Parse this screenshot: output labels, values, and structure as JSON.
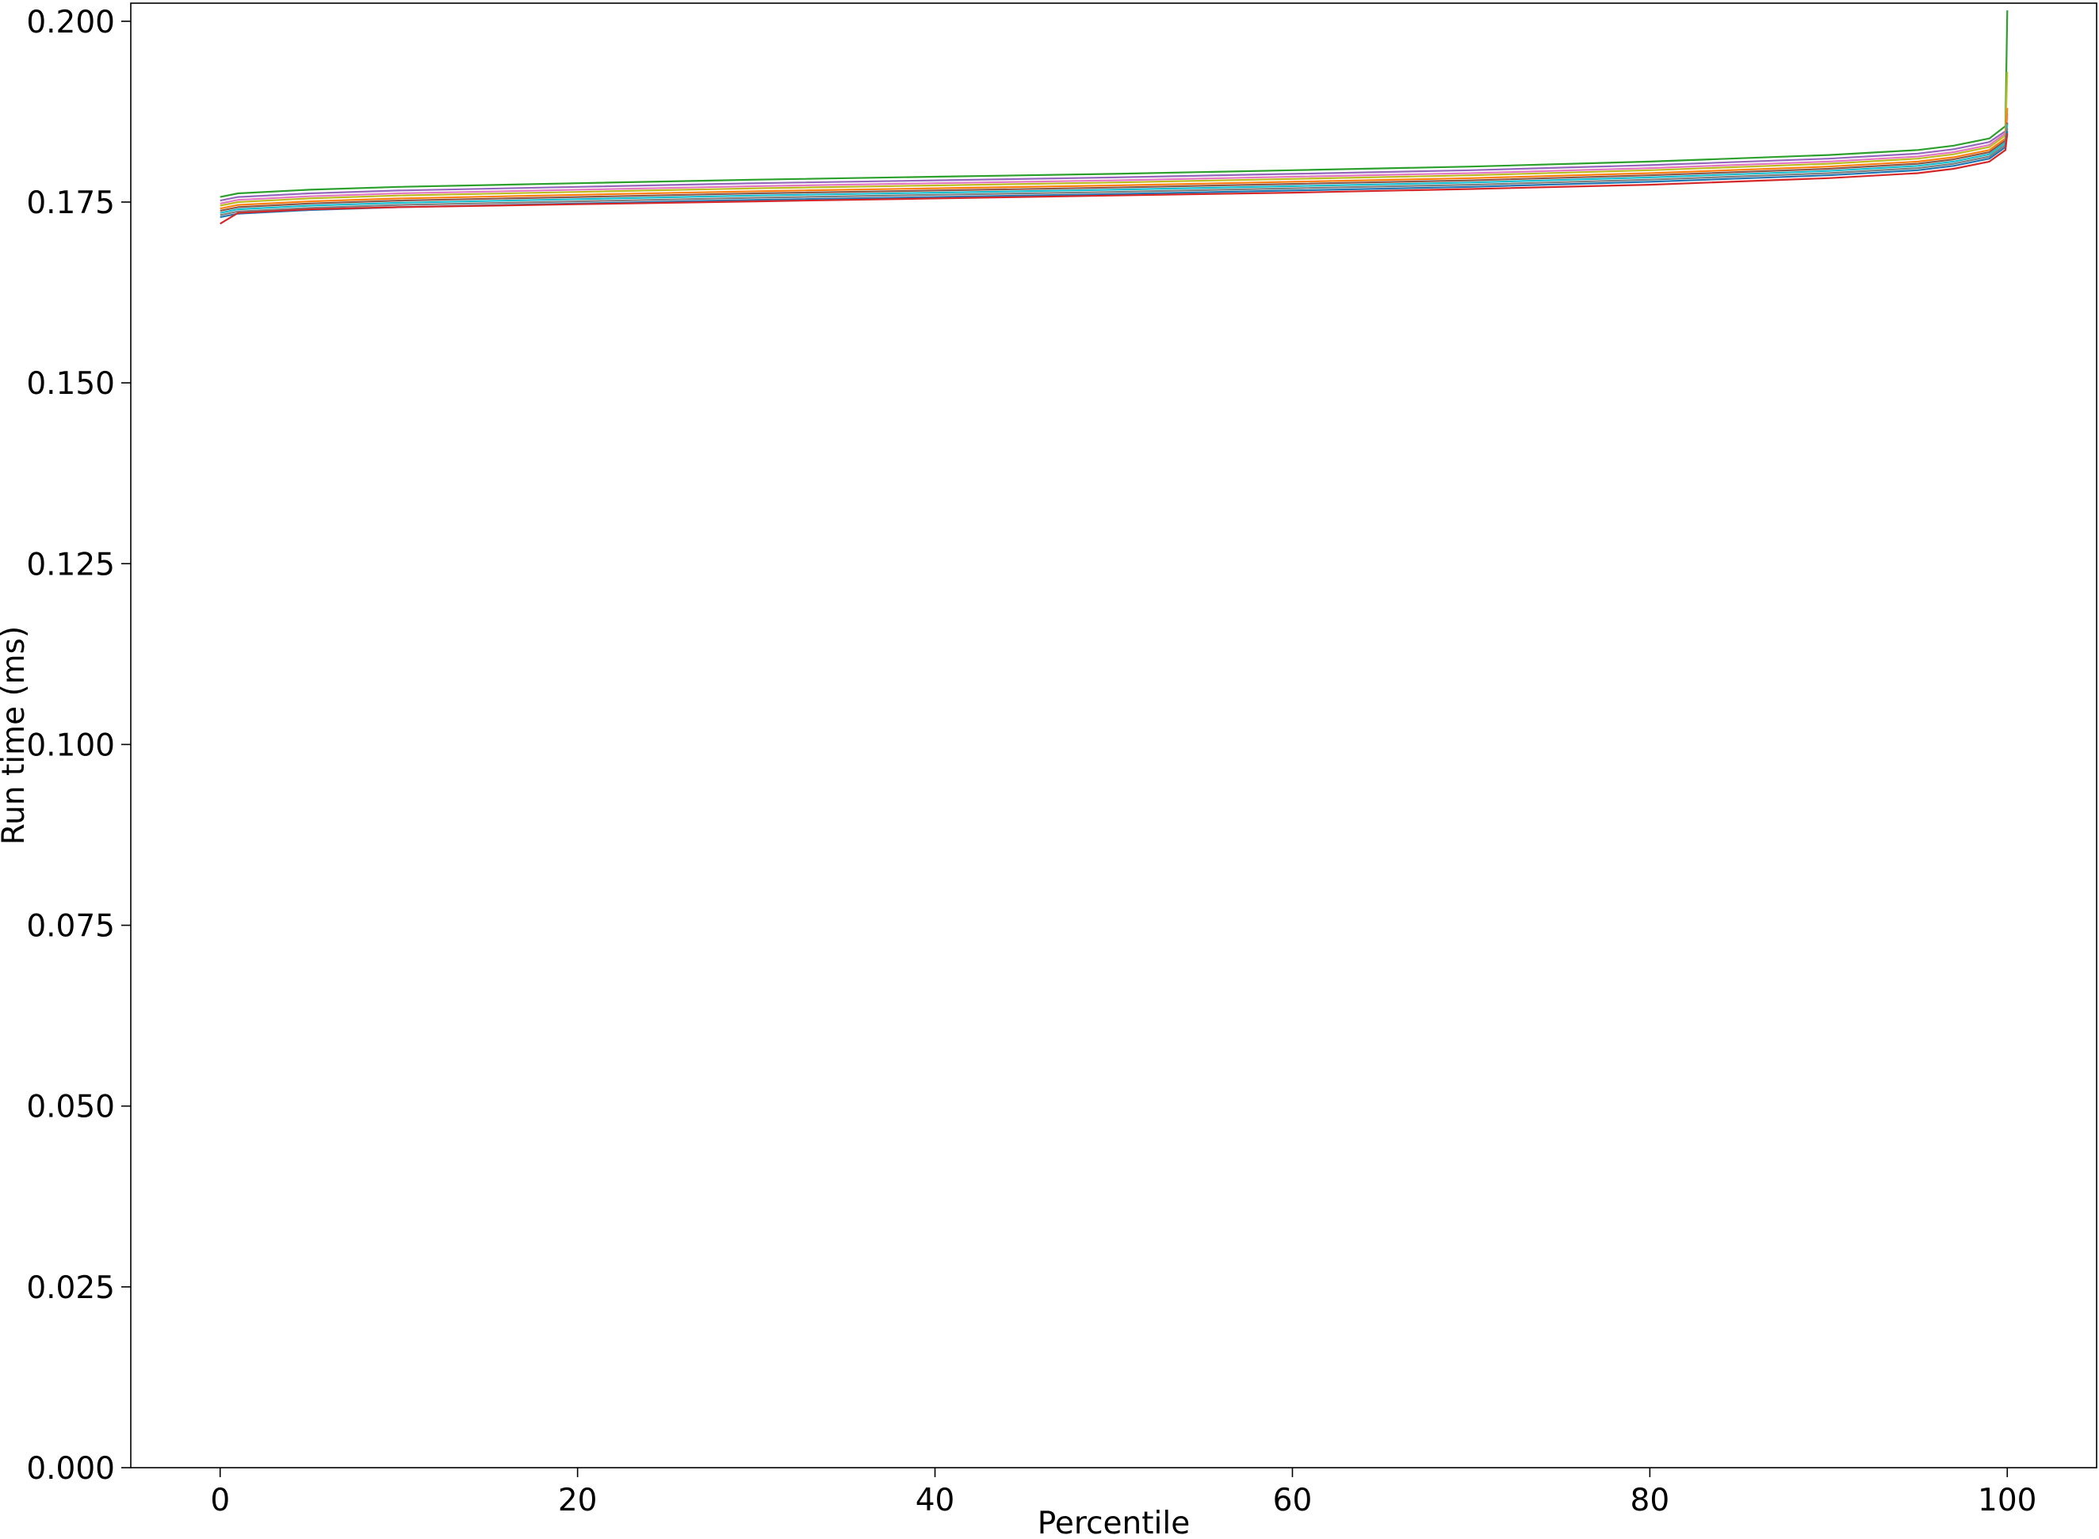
{
  "chart_data": {
    "type": "line",
    "title": "",
    "xlabel": "Percentile",
    "ylabel": "Run time (ms)",
    "xlim": [
      -5,
      105
    ],
    "ylim": [
      0.0,
      0.2025
    ],
    "grid": false,
    "legend": "none",
    "xticks": [
      {
        "value": 0,
        "label": "0"
      },
      {
        "value": 20,
        "label": "20"
      },
      {
        "value": 40,
        "label": "40"
      },
      {
        "value": 60,
        "label": "60"
      },
      {
        "value": 80,
        "label": "80"
      },
      {
        "value": 100,
        "label": "100"
      }
    ],
    "yticks": [
      {
        "value": 0.0,
        "label": "0.000"
      },
      {
        "value": 0.025,
        "label": "0.025"
      },
      {
        "value": 0.05,
        "label": "0.050"
      },
      {
        "value": 0.075,
        "label": "0.075"
      },
      {
        "value": 0.1,
        "label": "0.100"
      },
      {
        "value": 0.125,
        "label": "0.125"
      },
      {
        "value": 0.15,
        "label": "0.150"
      },
      {
        "value": 0.175,
        "label": "0.175"
      },
      {
        "value": 0.2,
        "label": "0.200"
      }
    ],
    "x": [
      0,
      1,
      5,
      10,
      20,
      30,
      40,
      50,
      60,
      70,
      80,
      90,
      95,
      97,
      99,
      99.9,
      100
    ],
    "series": [
      {
        "color": "#2ca02c",
        "values": [
          0.1757,
          0.1762,
          0.1767,
          0.1771,
          0.1776,
          0.1781,
          0.1785,
          0.1789,
          0.1794,
          0.1799,
          0.1806,
          0.1815,
          0.1822,
          0.1828,
          0.1838,
          0.1855,
          0.2015
        ]
      },
      {
        "color": "#9467bd",
        "values": [
          0.1752,
          0.1757,
          0.1762,
          0.1766,
          0.1771,
          0.1776,
          0.178,
          0.1784,
          0.1789,
          0.1794,
          0.1801,
          0.181,
          0.1817,
          0.1823,
          0.1833,
          0.1848,
          0.1872
        ]
      },
      {
        "color": "#e377c2",
        "values": [
          0.1748,
          0.1753,
          0.1758,
          0.1762,
          0.1767,
          0.1772,
          0.1776,
          0.178,
          0.1785,
          0.179,
          0.1797,
          0.1806,
          0.1813,
          0.1819,
          0.1829,
          0.1845,
          0.1868
        ]
      },
      {
        "color": "#bcbd22",
        "values": [
          0.1745,
          0.175,
          0.1755,
          0.1759,
          0.1764,
          0.1769,
          0.1773,
          0.1777,
          0.1782,
          0.1787,
          0.1794,
          0.1803,
          0.181,
          0.1816,
          0.1826,
          0.1842,
          0.193
        ]
      },
      {
        "color": "#ff7f0e",
        "values": [
          0.1741,
          0.1746,
          0.1751,
          0.1755,
          0.176,
          0.1765,
          0.1769,
          0.1773,
          0.1778,
          0.1783,
          0.179,
          0.1799,
          0.1806,
          0.1812,
          0.1822,
          0.1838,
          0.188
        ]
      },
      {
        "color": "#8c564b",
        "values": [
          0.1738,
          0.1743,
          0.1748,
          0.1752,
          0.1757,
          0.1762,
          0.1766,
          0.177,
          0.1775,
          0.178,
          0.1787,
          0.1796,
          0.1803,
          0.1809,
          0.1819,
          0.1835,
          0.186
        ]
      },
      {
        "color": "#17becf",
        "values": [
          0.1735,
          0.174,
          0.1745,
          0.1749,
          0.1754,
          0.1759,
          0.1763,
          0.1767,
          0.1772,
          0.1777,
          0.1784,
          0.1793,
          0.18,
          0.1806,
          0.1816,
          0.1832,
          0.1858
        ]
      },
      {
        "color": "#7f7f7f",
        "values": [
          0.1732,
          0.1737,
          0.1742,
          0.1746,
          0.1751,
          0.1756,
          0.176,
          0.1764,
          0.1769,
          0.1774,
          0.1781,
          0.179,
          0.1797,
          0.1803,
          0.1813,
          0.1829,
          0.1852
        ]
      },
      {
        "color": "#1f77b4",
        "values": [
          0.1729,
          0.1734,
          0.1739,
          0.1743,
          0.1748,
          0.1753,
          0.1757,
          0.1761,
          0.1766,
          0.1771,
          0.1778,
          0.1787,
          0.1794,
          0.18,
          0.181,
          0.1826,
          0.1848
        ]
      },
      {
        "color": "#d62728",
        "values": [
          0.172,
          0.1735,
          0.174,
          0.1743,
          0.1747,
          0.1751,
          0.1755,
          0.1759,
          0.1763,
          0.1768,
          0.1774,
          0.1783,
          0.179,
          0.1796,
          0.1806,
          0.1822,
          0.1845
        ]
      }
    ]
  }
}
